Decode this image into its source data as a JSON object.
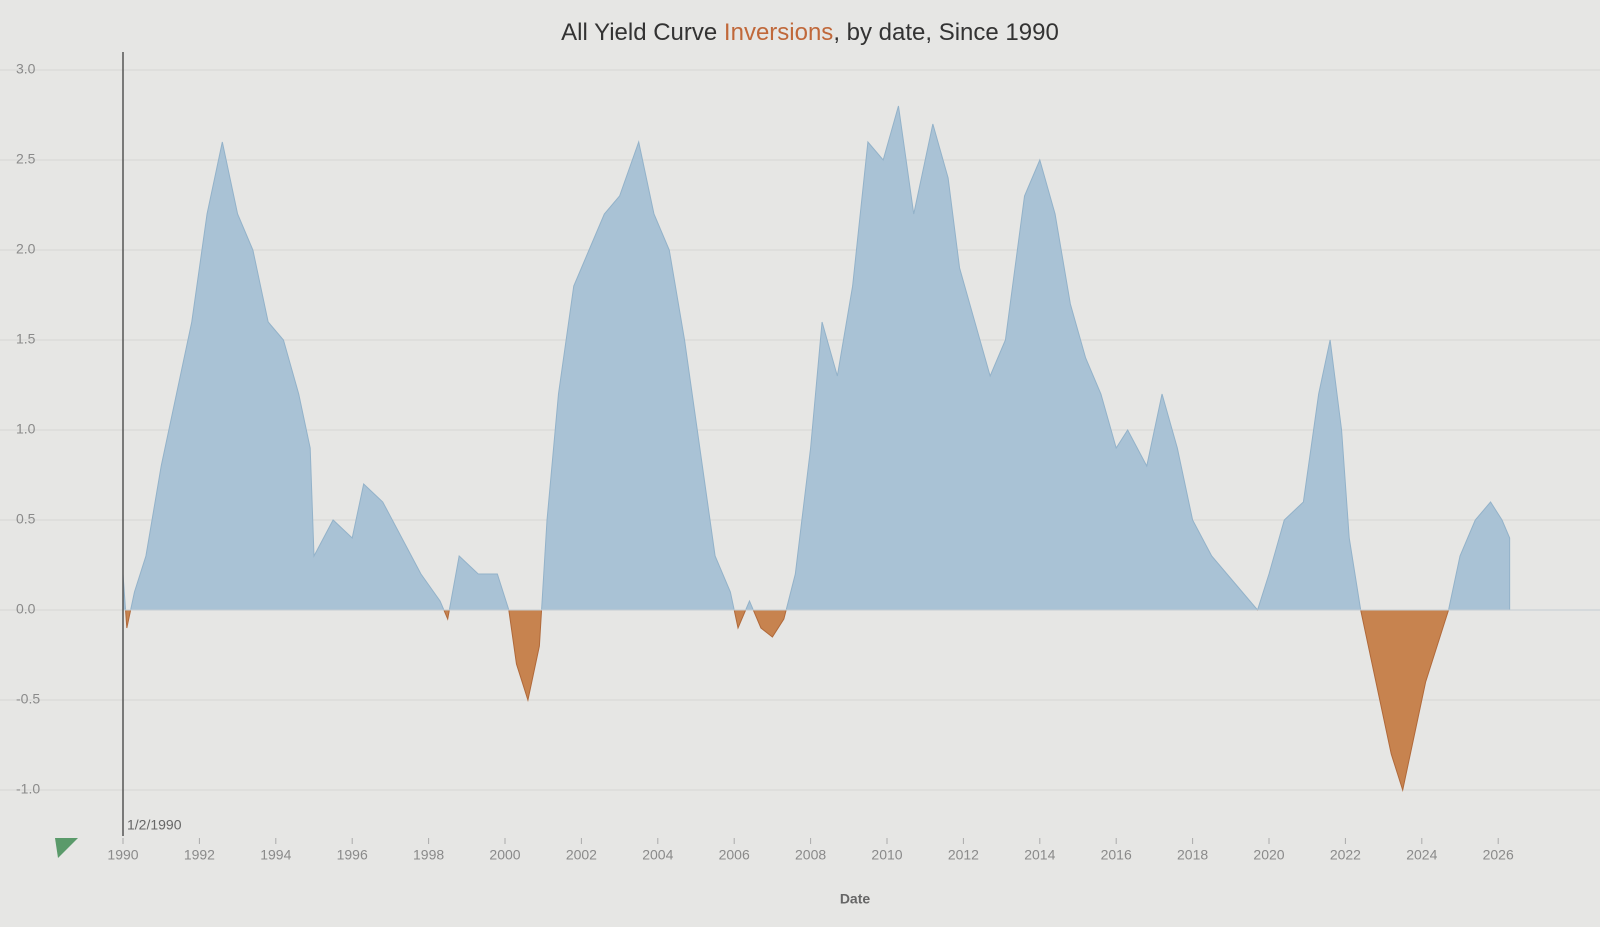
{
  "chart_data": {
    "type": "area",
    "title_parts": [
      "All Yield Curve",
      "Inversions",
      ", by date, Since 1990"
    ],
    "x_label": "Date",
    "annotation": "1/2/1990",
    "positive_color": "#a9c2d5",
    "negative_color": "#c7834f",
    "grid": true,
    "xlim": [
      1990,
      2028
    ],
    "xticks": [
      1990,
      1992,
      1994,
      1996,
      1998,
      2000,
      2002,
      2004,
      2006,
      2008,
      2010,
      2012,
      2014,
      2016,
      2018,
      2020,
      2022,
      2024,
      2026
    ],
    "ylim": [
      -1.2,
      3.1
    ],
    "yticks": [
      {
        "value": 3,
        "label": "3.0"
      },
      2.5,
      {
        "value": 2,
        "label": "2.0"
      },
      1.5,
      {
        "value": 1,
        "label": "1.0"
      },
      0.5,
      {
        "value": 0,
        "label": "0.0"
      },
      -0.5,
      {
        "value": -1,
        "label": "-1.0"
      }
    ],
    "x": [
      1990.0,
      1990.1,
      1990.3,
      1990.6,
      1991.0,
      1991.4,
      1991.8,
      1992.2,
      1992.6,
      1993.0,
      1993.4,
      1993.8,
      1994.2,
      1994.6,
      1994.9,
      1995.0,
      1995.5,
      1996.0,
      1996.3,
      1996.8,
      1997.3,
      1997.8,
      1998.3,
      1998.5,
      1998.8,
      1999.3,
      1999.8,
      2000.1,
      2000.3,
      2000.6,
      2000.9,
      2001.1,
      2001.4,
      2001.8,
      2002.2,
      2002.6,
      2003.0,
      2003.5,
      2003.9,
      2004.3,
      2004.7,
      2005.1,
      2005.5,
      2005.9,
      2006.1,
      2006.4,
      2006.7,
      2007.0,
      2007.3,
      2007.6,
      2008.0,
      2008.3,
      2008.7,
      2009.1,
      2009.5,
      2009.9,
      2010.3,
      2010.7,
      2011.2,
      2011.6,
      2011.9,
      2012.3,
      2012.7,
      2013.1,
      2013.6,
      2014.0,
      2014.4,
      2014.8,
      2015.2,
      2015.6,
      2016.0,
      2016.3,
      2016.8,
      2017.2,
      2017.6,
      2018.0,
      2018.5,
      2018.9,
      2019.3,
      2019.7,
      2020.0,
      2020.4,
      2020.9,
      2021.3,
      2021.6,
      2021.9,
      2022.1,
      2022.4,
      2022.6,
      2022.9,
      2023.2,
      2023.5,
      2023.8,
      2024.1,
      2024.4,
      2024.7,
      2025.0,
      2025.4,
      2025.8,
      2026.1,
      2026.3
    ],
    "values": [
      0.2,
      -0.1,
      0.1,
      0.3,
      0.8,
      1.2,
      1.6,
      2.2,
      2.6,
      2.2,
      2.0,
      1.6,
      1.5,
      1.2,
      0.9,
      0.3,
      0.5,
      0.4,
      0.7,
      0.6,
      0.4,
      0.2,
      0.05,
      -0.05,
      0.3,
      0.2,
      0.2,
      0.0,
      -0.3,
      -0.5,
      -0.2,
      0.5,
      1.2,
      1.8,
      2.0,
      2.2,
      2.3,
      2.6,
      2.2,
      2.0,
      1.5,
      0.9,
      0.3,
      0.1,
      -0.1,
      0.05,
      -0.1,
      -0.15,
      -0.05,
      0.2,
      0.9,
      1.6,
      1.3,
      1.8,
      2.6,
      2.5,
      2.8,
      2.2,
      2.7,
      2.4,
      1.9,
      1.6,
      1.3,
      1.5,
      2.3,
      2.5,
      2.2,
      1.7,
      1.4,
      1.2,
      0.9,
      1.0,
      0.8,
      1.2,
      0.9,
      0.5,
      0.3,
      0.2,
      0.1,
      0.0,
      0.2,
      0.5,
      0.6,
      1.2,
      1.5,
      1.0,
      0.4,
      0.0,
      -0.2,
      -0.5,
      -0.8,
      -1.0,
      -0.7,
      -0.4,
      -0.2,
      0.0,
      0.3,
      0.5,
      0.6,
      0.5,
      0.4
    ]
  }
}
